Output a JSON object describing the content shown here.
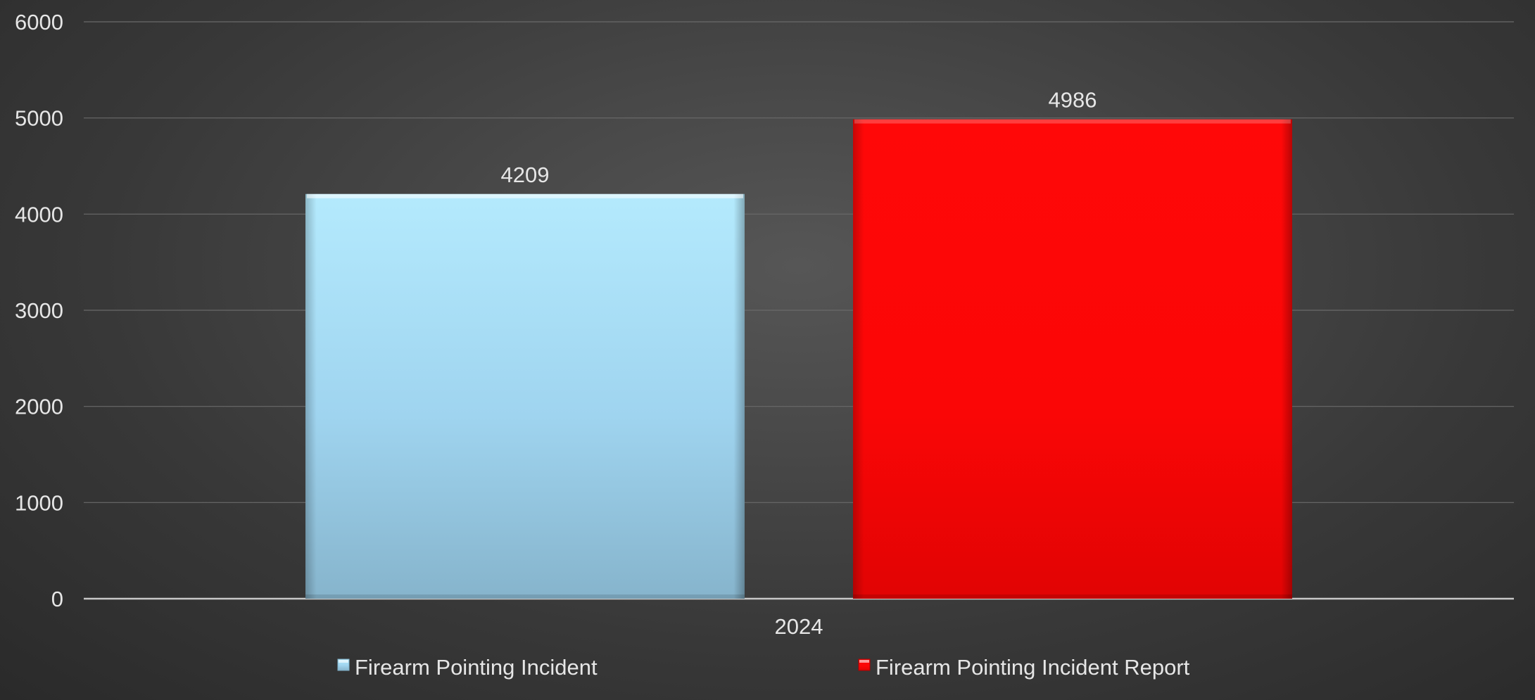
{
  "chart_data": {
    "type": "bar",
    "categories": [
      "2024"
    ],
    "series": [
      {
        "name": "Firearm Pointing Incident",
        "values": [
          4209
        ],
        "color": "#9dd3ea"
      },
      {
        "name": "Firearm Pointing Incident Report",
        "values": [
          4986
        ],
        "color": "#ff0000"
      }
    ],
    "ylim": [
      0,
      6000
    ],
    "yticks": [
      "0",
      "1000",
      "2000",
      "3000",
      "4000",
      "5000",
      "6000"
    ],
    "data_labels": [
      "4209",
      "4986"
    ],
    "grid": true,
    "legend_position": "bottom",
    "background_color": "#3d3d3d",
    "text_color": "#e6e6e6"
  }
}
